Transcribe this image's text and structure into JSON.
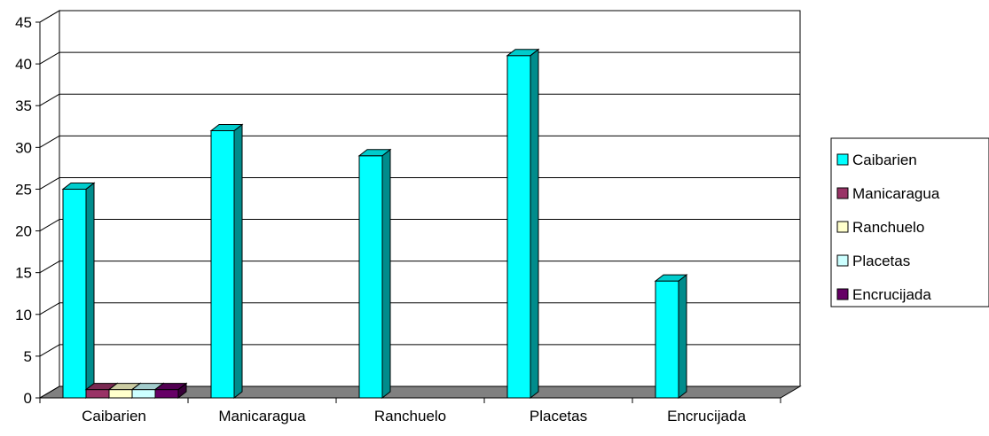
{
  "chart_data": {
    "type": "bar",
    "style": "3d-column",
    "categories": [
      "Caibarien",
      "Manicaragua",
      "Ranchuelo",
      "Placetas",
      "Encrucijada"
    ],
    "series": [
      {
        "name": "Caibarien",
        "color": "#00FFFF",
        "values": [
          25,
          32,
          29,
          41,
          14
        ]
      },
      {
        "name": "Manicaragua",
        "color": "#993366",
        "values": [
          1,
          0,
          0,
          0,
          0
        ]
      },
      {
        "name": "Ranchuelo",
        "color": "#FFFFCC",
        "values": [
          1,
          0,
          0,
          0,
          0
        ]
      },
      {
        "name": "Placetas",
        "color": "#CCFFFF",
        "values": [
          1,
          0,
          0,
          0,
          0
        ]
      },
      {
        "name": "Encrucijada",
        "color": "#660066",
        "values": [
          1,
          0,
          0,
          0,
          0
        ]
      }
    ],
    "y_ticks": [
      "0",
      "5",
      "10",
      "15",
      "20",
      "25",
      "30",
      "35",
      "40",
      "45"
    ],
    "ylim": [
      0,
      45
    ],
    "grid": true,
    "legend_position": "right",
    "title": "",
    "xlabel": "",
    "ylabel": ""
  }
}
